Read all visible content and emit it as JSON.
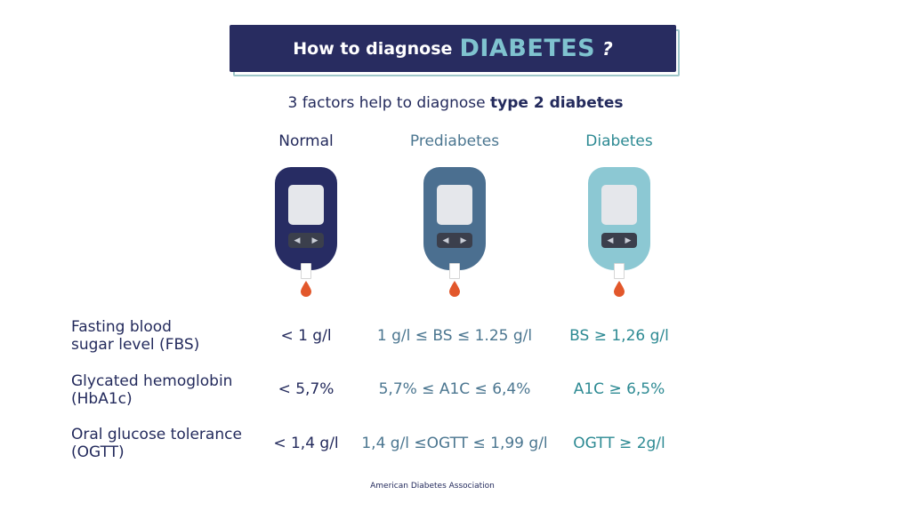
{
  "banner": {
    "prefix": "How to diagnose",
    "highlight": "DIABETES",
    "suffix": "?"
  },
  "subtitle": {
    "text": "3 factors help to diagnose ",
    "bold": "type 2 diabetes"
  },
  "columns": [
    {
      "label": "Normal",
      "meter_color": "#272c63"
    },
    {
      "label": "Prediabetes",
      "meter_color": "#4b6f90"
    },
    {
      "label": "Diabetes",
      "meter_color": "#8cc8d3"
    }
  ],
  "meter_controls": {
    "left": "◀",
    "right": "▶"
  },
  "rows": [
    {
      "label_line1": "Fasting blood",
      "label_line2": "sugar level (FBS)",
      "normal": "< 1 g/l",
      "prediabetes": "1 g/l ≤ BS ≤ 1.25 g/l",
      "diabetes": "BS ≥ 1,26 g/l"
    },
    {
      "label_line1": "Glycated hemoglobin",
      "label_line2": "(HbA1c)",
      "normal": "< 5,7%",
      "prediabetes": "5,7% ≤ A1C ≤ 6,4%",
      "diabetes": "A1C ≥ 6,5%"
    },
    {
      "label_line1": "Oral glucose tolerance",
      "label_line2": "(OGTT)",
      "normal": "< 1,4 g/l",
      "prediabetes": "1,4 g/l ≤OGTT ≤ 1,99 g/l",
      "diabetes": "OGTT ≥ 2g/l"
    }
  ],
  "colors": {
    "navy": "#282c60",
    "accent_teal": "#7fc3cf",
    "drop_red": "#e2572b"
  },
  "source": "American Diabetes Association"
}
